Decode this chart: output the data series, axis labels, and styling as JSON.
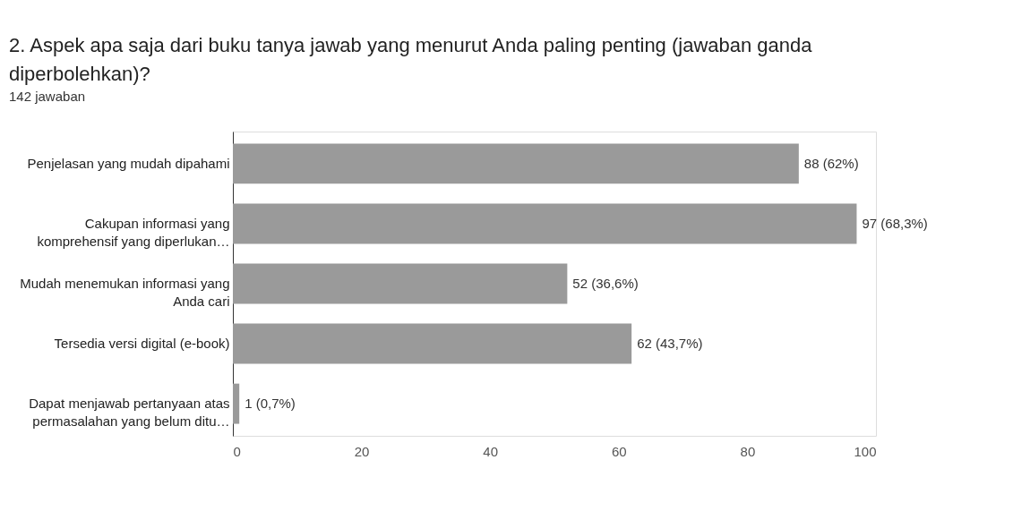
{
  "chart_data": {
    "type": "bar",
    "orientation": "horizontal",
    "title": "2. Aspek apa saja dari buku tanya jawab yang menurut Anda paling penting (jawaban ganda diperbolehkan)?",
    "subtitle": "142 jawaban",
    "categories": [
      "Penjelasan yang mudah dipahami",
      "Cakupan informasi yang komprehensif yang diperlukan…",
      "Mudah menemukan informasi yang Anda cari",
      "Tersedia versi digital (e-book)",
      "Dapat menjawab pertanyaan atas permasalahan yang belum ditu…"
    ],
    "values": [
      88,
      97,
      52,
      62,
      1
    ],
    "value_labels": [
      "88 (62%)",
      "97 (68,3%)",
      "52 (36,6%)",
      "62 (43,7%)",
      "1 (0,7%)"
    ],
    "color": "#9a9a9a",
    "xlim": [
      0,
      100
    ],
    "xticks": [
      0,
      20,
      40,
      60,
      80,
      100
    ],
    "grid": false
  }
}
